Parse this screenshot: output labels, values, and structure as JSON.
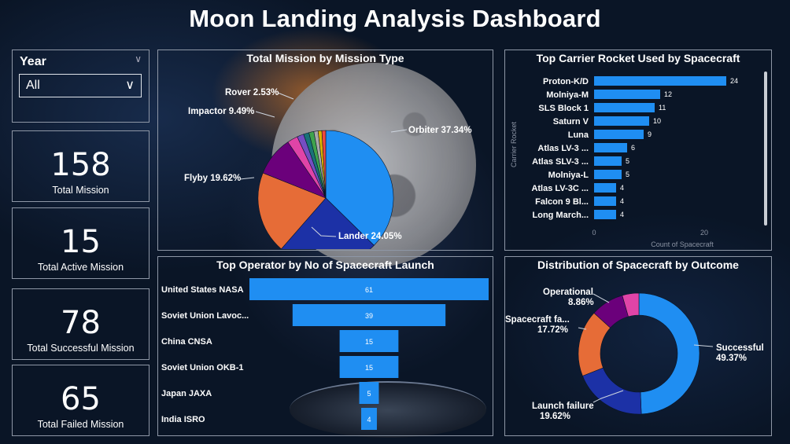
{
  "title": "Moon Landing Analysis Dashboard",
  "colors": {
    "blue": "#1f8ef2",
    "navy": "#1c31a6",
    "orange": "#e66c37",
    "purple": "#6b007b",
    "pink": "#e044a7"
  },
  "slicer": {
    "label": "Year",
    "value": "All"
  },
  "kpis": [
    {
      "value": "158",
      "label": "Total Mission"
    },
    {
      "value": "15",
      "label": "Total Active Mission"
    },
    {
      "value": "78",
      "label": "Total Successful Mission"
    },
    {
      "value": "65",
      "label": "Total Failed Mission"
    }
  ],
  "chart_data": [
    {
      "type": "pie",
      "title": "Total Mission by Mission Type",
      "slices": [
        {
          "label": "Orbiter",
          "pct": "37.34%",
          "value": 37.34,
          "color": "#1f8ef2"
        },
        {
          "label": "Lander",
          "pct": "24.05%",
          "value": 24.05,
          "color": "#1c31a6"
        },
        {
          "label": "Flyby",
          "pct": "19.62%",
          "value": 19.62,
          "color": "#e66c37"
        },
        {
          "label": "Impactor",
          "pct": "9.49%",
          "value": 9.49,
          "color": "#6b007b"
        },
        {
          "label": "Rover",
          "pct": "2.53%",
          "value": 2.53,
          "color": "#e044a7"
        },
        {
          "label": "",
          "pct": "",
          "value": 1.6,
          "color": "#744ec2"
        },
        {
          "label": "",
          "pct": "",
          "value": 1.3,
          "color": "#197278"
        },
        {
          "label": "",
          "pct": "",
          "value": 1.2,
          "color": "#3fa34d"
        },
        {
          "label": "",
          "pct": "",
          "value": 1.0,
          "color": "#a9a9a9"
        },
        {
          "label": "",
          "pct": "",
          "value": 0.9,
          "color": "#d9b300"
        },
        {
          "label": "",
          "pct": "",
          "value": 0.92,
          "color": "#f0483e"
        }
      ]
    },
    {
      "type": "bar",
      "title": "Top Carrier Rocket Used by Spacecraft",
      "categories": [
        "Proton-K/D",
        "Molniya-M",
        "SLS Block 1",
        "Saturn V",
        "Luna",
        "Atlas LV-3 ...",
        "Atlas SLV-3 ...",
        "Molniya-L",
        "Atlas LV-3C ...",
        "Falcon 9 Bl...",
        "Long March..."
      ],
      "values": [
        24,
        12,
        11,
        10,
        9,
        6,
        5,
        5,
        4,
        4,
        4
      ],
      "value_labels": [
        "24",
        "12",
        "11",
        "10",
        "9",
        "6",
        "5",
        "5",
        "4",
        "4",
        "4"
      ],
      "xlabel": "Count of Spacecraft",
      "ylabel": "Carrier Rocket",
      "ticks": [
        "0",
        "20"
      ],
      "xlim": [
        0,
        25
      ]
    },
    {
      "type": "bar",
      "title": "Top Operator by No of Spacecraft Launch",
      "categories": [
        "United States NASA",
        "Soviet Union Lavoc...",
        "China CNSA",
        "Soviet Union OKB-1",
        "Japan JAXA",
        "India ISRO"
      ],
      "values": [
        61,
        39,
        15,
        15,
        5,
        4
      ],
      "value_labels": [
        "61",
        "39",
        "15",
        "15",
        "5",
        "4"
      ]
    },
    {
      "type": "pie",
      "title": "Distribution of Spacecraft by Outcome",
      "slices": [
        {
          "label": "Successful",
          "pct": "49.37%",
          "value": 49.37,
          "color": "#1f8ef2"
        },
        {
          "label": "Launch failure",
          "pct": "19.62%",
          "value": 19.62,
          "color": "#1c31a6"
        },
        {
          "label": "Spacecraft fa...",
          "pct": "17.72%",
          "value": 17.72,
          "color": "#e66c37"
        },
        {
          "label": "Operational",
          "pct": "8.86%",
          "value": 8.86,
          "color": "#6b007b"
        },
        {
          "label": "",
          "pct": "",
          "value": 4.43,
          "color": "#e044a7"
        }
      ]
    }
  ]
}
